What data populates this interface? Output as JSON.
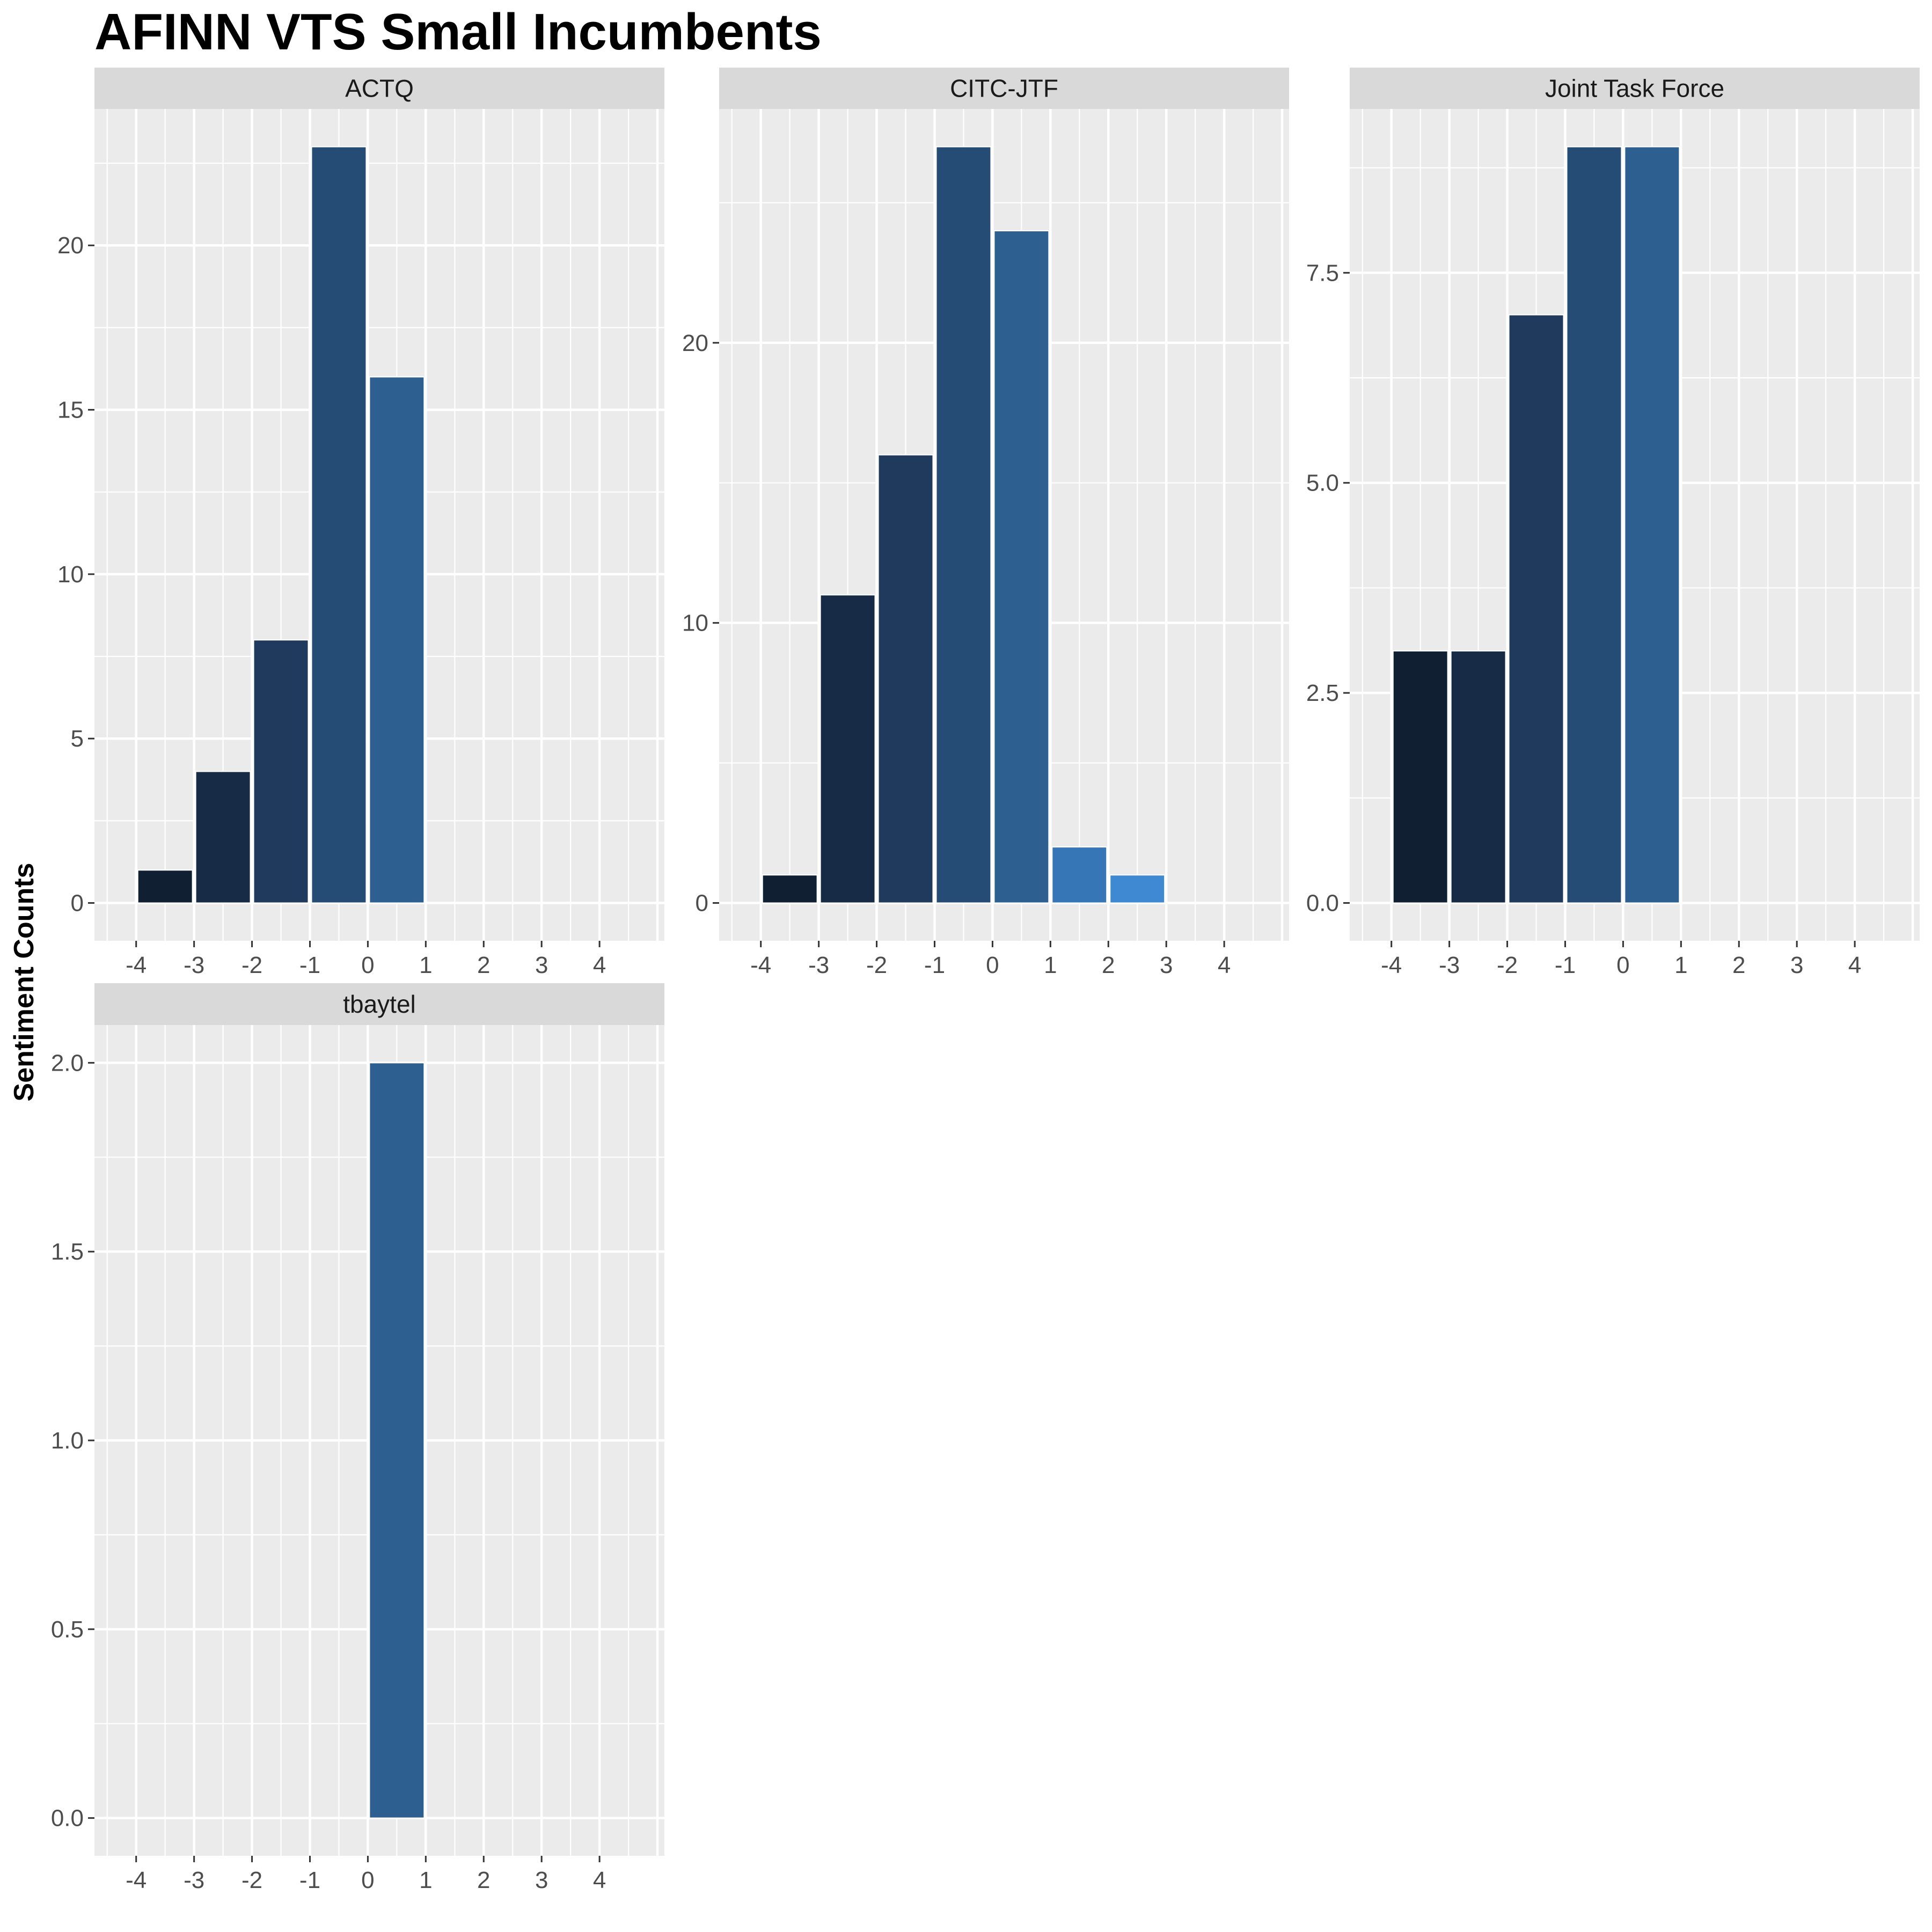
{
  "chart_data": {
    "type": "bar",
    "title": "AFINN VTS Small Incumbents",
    "xlabel": "",
    "ylabel": "Sentiment Counts",
    "x_ticks": [
      -4,
      -3,
      -2,
      -1,
      0,
      1,
      2,
      3,
      4
    ],
    "bar_colors": {
      "-3": "#111f33",
      "-2": "#182b46",
      "-1": "#1f3a5c",
      "0": "#244c74",
      "1": "#2d5f91",
      "2": "#3676b6",
      "3": "#3f89d3"
    },
    "grid": true,
    "legend": "none",
    "panels": [
      {
        "name": "ACTQ",
        "x": [
          -3,
          -2,
          -1,
          0,
          1
        ],
        "values": [
          1,
          4,
          8,
          23,
          16
        ],
        "ylim": [
          -1.15,
          24.15
        ],
        "yticks": [
          0,
          5,
          10,
          15,
          20
        ],
        "ytick_labels": [
          "0",
          "5",
          "10",
          "15",
          "20"
        ]
      },
      {
        "name": "CITC-JTF",
        "x": [
          -3,
          -2,
          -1,
          0,
          1,
          2,
          3
        ],
        "values": [
          1,
          11,
          16,
          27,
          24,
          2,
          1
        ],
        "ylim": [
          -1.35,
          28.35
        ],
        "yticks": [
          0,
          10,
          20
        ],
        "ytick_labels": [
          "0",
          "10",
          "20"
        ]
      },
      {
        "name": "Joint Task Force",
        "x": [
          -3,
          -2,
          -1,
          0,
          1
        ],
        "values": [
          3,
          3,
          7,
          9,
          9
        ],
        "ylim": [
          -0.45,
          9.45
        ],
        "yticks": [
          0,
          2.5,
          5,
          7.5
        ],
        "ytick_labels": [
          "0.0",
          "2.5",
          "5.0",
          "7.5"
        ]
      },
      {
        "name": "tbaytel",
        "x": [
          1
        ],
        "values": [
          2
        ],
        "ylim": [
          -0.1,
          2.1
        ],
        "yticks": [
          0,
          0.5,
          1,
          1.5,
          2
        ],
        "ytick_labels": [
          "0.0",
          "0.5",
          "1.0",
          "1.5",
          "2.0"
        ]
      }
    ]
  }
}
